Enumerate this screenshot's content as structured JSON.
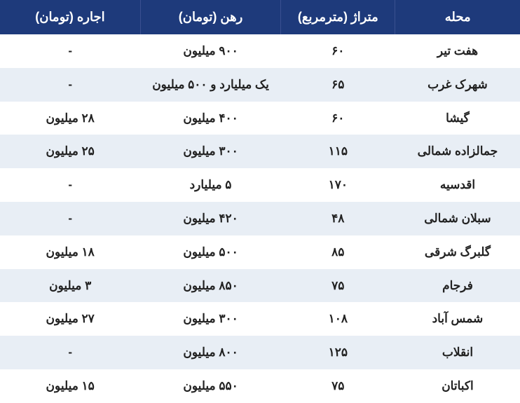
{
  "table": {
    "columns": [
      {
        "key": "neighborhood",
        "label": "محله"
      },
      {
        "key": "area",
        "label": "متراژ (مترمربع)"
      },
      {
        "key": "deposit",
        "label": "رهن (تومان)"
      },
      {
        "key": "rent",
        "label": "اجاره (تومان)"
      }
    ],
    "rows": [
      {
        "neighborhood": "هفت تیر",
        "area": "۶۰",
        "deposit": "۹۰۰ میلیون",
        "rent": "-"
      },
      {
        "neighborhood": "شهرک غرب",
        "area": "۶۵",
        "deposit": "یک میلیارد و ۵۰۰ میلیون",
        "rent": "-"
      },
      {
        "neighborhood": "گیشا",
        "area": "۶۰",
        "deposit": "۴۰۰ میلیون",
        "rent": "۲۸ میلیون"
      },
      {
        "neighborhood": "جمالزاده شمالی",
        "area": "۱۱۵",
        "deposit": "۳۰۰ میلیون",
        "rent": "۲۵ میلیون"
      },
      {
        "neighborhood": "اقدسیه",
        "area": "۱۷۰",
        "deposit": "۵ میلیارد",
        "rent": "-"
      },
      {
        "neighborhood": "سبلان شمالی",
        "area": "۴۸",
        "deposit": "۴۲۰ میلیون",
        "rent": "-"
      },
      {
        "neighborhood": "گلبرگ شرقی",
        "area": "۸۵",
        "deposit": "۵۰۰ میلیون",
        "rent": "۱۸ میلیون"
      },
      {
        "neighborhood": "فرجام",
        "area": "۷۵",
        "deposit": "۸۵۰ میلیون",
        "rent": "۳ میلیون"
      },
      {
        "neighborhood": "شمس آباد",
        "area": "۱۰۸",
        "deposit": "۳۰۰ میلیون",
        "rent": "۲۷ میلیون"
      },
      {
        "neighborhood": "انقلاب",
        "area": "۱۲۵",
        "deposit": "۸۰۰ میلیون",
        "rent": "-"
      },
      {
        "neighborhood": "اکباتان",
        "area": "۷۵",
        "deposit": "۵۵۰ میلیون",
        "rent": "۱۵ میلیون"
      }
    ],
    "header_bg": "#1e3a7b",
    "header_text_color": "#ffffff",
    "row_odd_bg": "#ffffff",
    "row_even_bg": "#e8eef5",
    "cell_text_color": "#222222",
    "header_fontsize": 18,
    "cell_fontsize": 17
  }
}
